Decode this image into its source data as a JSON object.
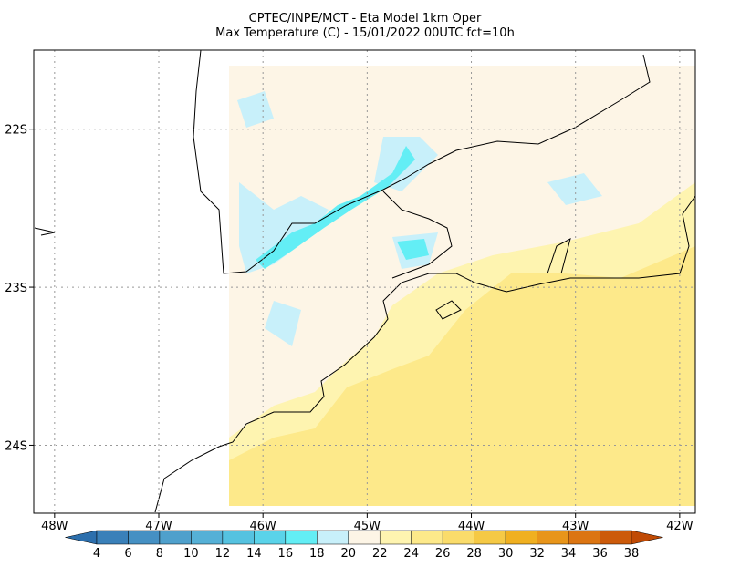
{
  "header": {
    "title_line1": "CPTEC/INPE/MCT -  Eta Model 1km Oper",
    "title_line2": "Max Temperature (C) - 15/01/2022 00UTC fct=10h"
  },
  "map": {
    "lon_range": [
      -48.2,
      -41.85
    ],
    "lat_range": [
      -21.5,
      -24.43
    ],
    "lat_ticks": [
      {
        "value": -22,
        "label": "22S"
      },
      {
        "value": -23,
        "label": "23S"
      },
      {
        "value": -24,
        "label": "24S"
      }
    ],
    "lon_ticks": [
      {
        "value": -48,
        "label": "48W"
      },
      {
        "value": -47,
        "label": "47W"
      },
      {
        "value": -46,
        "label": "46W"
      },
      {
        "value": -45,
        "label": "45W"
      },
      {
        "value": -44,
        "label": "44W"
      },
      {
        "value": -43,
        "label": "43W"
      },
      {
        "value": -42,
        "label": "42W"
      }
    ],
    "grid": true
  },
  "colorbar": {
    "levels": [
      4,
      6,
      8,
      10,
      12,
      14,
      16,
      18,
      20,
      22,
      24,
      26,
      28,
      30,
      32,
      34,
      36,
      38
    ],
    "colors": [
      "#2c6fad",
      "#3a80b9",
      "#4590c3",
      "#4fa0cc",
      "#55b0d6",
      "#55c2e0",
      "#5ad3e9",
      "#63eef5",
      "#c8f0fa",
      "#fdf5e6",
      "#fef4b0",
      "#fde98a",
      "#fadc6b",
      "#f5c945",
      "#f0b020",
      "#e8951a",
      "#dc7512",
      "#cc5a0a",
      "#c04a04"
    ]
  }
}
